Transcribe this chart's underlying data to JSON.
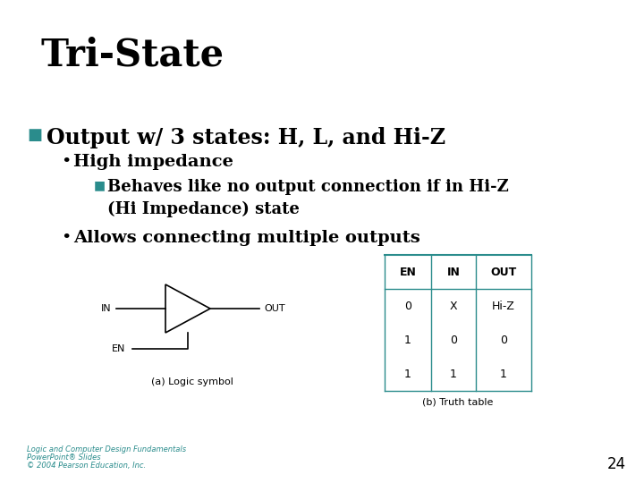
{
  "title": "Tri-State",
  "bullet1": "Output w/ 3 states: H, L, and Hi-Z",
  "sub1": "High impedance",
  "sub2": "Behaves like no output connection if in Hi-Z\n(Hi Impedance) state",
  "sub3": "Allows connecting multiple outputs",
  "caption_a": "(a) Logic symbol",
  "caption_b": "(b) Truth table",
  "footer1": "Logic and Computer Design Fundamentals",
  "footer2": "PowerPoint® Slides",
  "footer3": "© 2004 Pearson Education, Inc.",
  "page_num": "24",
  "bg_color": "#ffffff",
  "title_color": "#000000",
  "bullet_color": "#2a8c8c",
  "text_color": "#000000",
  "footer_color": "#2a8c8c",
  "table_color": "#2a8c8c",
  "table_headers": [
    "EN",
    "IN",
    "OUT"
  ],
  "table_rows": [
    [
      "0",
      "X",
      "Hi-Z"
    ],
    [
      "1",
      "0",
      "0"
    ],
    [
      "1",
      "1",
      "1"
    ]
  ]
}
